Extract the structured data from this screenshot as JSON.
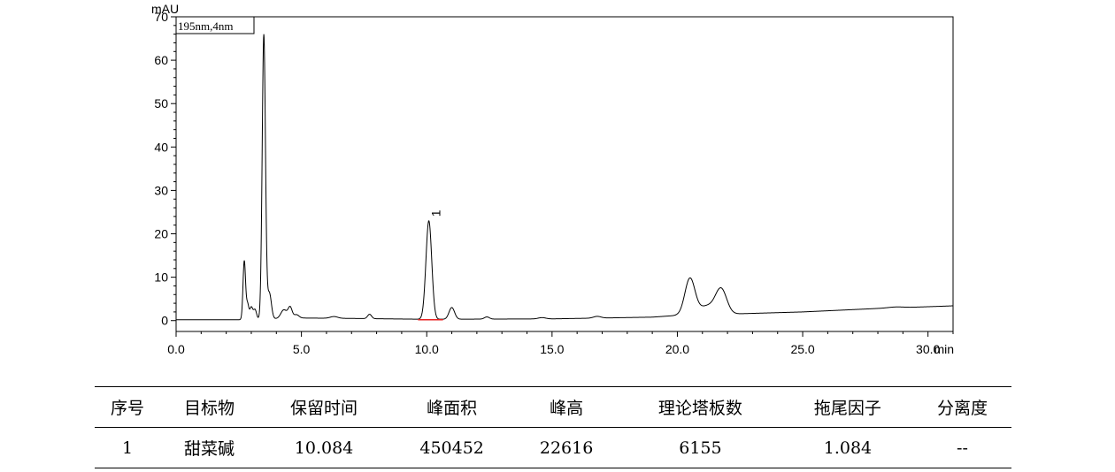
{
  "chart_data": {
    "type": "line",
    "title": "",
    "xlabel": "min",
    "ylabel": "mAU",
    "legend_label": "195nm,4nm",
    "xlim": [
      0,
      31
    ],
    "ylim": [
      -2.5,
      70
    ],
    "x_ticks": [
      0,
      5,
      10,
      15,
      20,
      25,
      30
    ],
    "x_tick_labels": [
      "0.0",
      "5.0",
      "10.0",
      "15.0",
      "20.0",
      "25.0",
      "30.0"
    ],
    "y_ticks": [
      0,
      10,
      20,
      30,
      40,
      50,
      60,
      70
    ],
    "y_tick_labels": [
      "0",
      "10",
      "20",
      "30",
      "40",
      "50",
      "60",
      "70"
    ],
    "grid": false,
    "baseline": [
      [
        0,
        0.2
      ],
      [
        2.5,
        0.2
      ],
      [
        5,
        0.6
      ],
      [
        7,
        0.5
      ],
      [
        10,
        0.3
      ],
      [
        15,
        0.4
      ],
      [
        19,
        0.8
      ],
      [
        20,
        1.2
      ],
      [
        22,
        1.5
      ],
      [
        25,
        2.0
      ],
      [
        28,
        2.8
      ],
      [
        30,
        3.2
      ],
      [
        31,
        3.4
      ]
    ],
    "peaks": [
      {
        "t": 2.72,
        "h": 13.5,
        "w": 0.05
      },
      {
        "t": 2.85,
        "h": 3.5,
        "w": 0.05
      },
      {
        "t": 3.0,
        "h": 2.8,
        "w": 0.06
      },
      {
        "t": 3.15,
        "h": 2.2,
        "w": 0.06
      },
      {
        "t": 3.5,
        "h": 65.5,
        "w": 0.065
      },
      {
        "t": 3.72,
        "h": 6.0,
        "w": 0.08
      },
      {
        "t": 4.3,
        "h": 2.0,
        "w": 0.12
      },
      {
        "t": 4.55,
        "h": 2.5,
        "w": 0.08
      },
      {
        "t": 4.8,
        "h": 0.8,
        "w": 0.1
      },
      {
        "t": 6.3,
        "h": 0.4,
        "w": 0.15
      },
      {
        "t": 7.72,
        "h": 1.0,
        "w": 0.08
      },
      {
        "t": 10.084,
        "h": 22.7,
        "w": 0.115
      },
      {
        "t": 11.0,
        "h": 2.7,
        "w": 0.11
      },
      {
        "t": 12.4,
        "h": 0.5,
        "w": 0.1
      },
      {
        "t": 14.6,
        "h": 0.3,
        "w": 0.15
      },
      {
        "t": 16.8,
        "h": 0.4,
        "w": 0.15
      },
      {
        "t": 20.5,
        "h": 8.3,
        "w": 0.2
      },
      {
        "t": 21.75,
        "h": 5.5,
        "w": 0.22
      },
      {
        "t": 21.2,
        "h": 2.0,
        "w": 0.35
      },
      {
        "t": 28.7,
        "h": 0.2,
        "w": 0.3
      },
      {
        "t": 32.0,
        "h": 0.3,
        "w": 0.4
      },
      {
        "t": 33.2,
        "h": 0.6,
        "w": 0.4
      }
    ],
    "peak_labels": [
      {
        "label": "1",
        "t": 10.084,
        "y": 22.7
      }
    ],
    "integration_baseline": {
      "x": [
        9.65,
        10.65
      ],
      "y": [
        0.2,
        0.2
      ],
      "color": "#e82020"
    },
    "line_color": "#000000"
  },
  "table": {
    "headers": [
      "序号",
      "目标物",
      "保留时间",
      "峰面积",
      "峰高",
      "理论塔板数",
      "拖尾因子",
      "分离度"
    ],
    "rows": [
      [
        "1",
        "甜菜碱",
        "10.084",
        "450452",
        "22616",
        "6155",
        "1.084",
        "--"
      ]
    ]
  }
}
